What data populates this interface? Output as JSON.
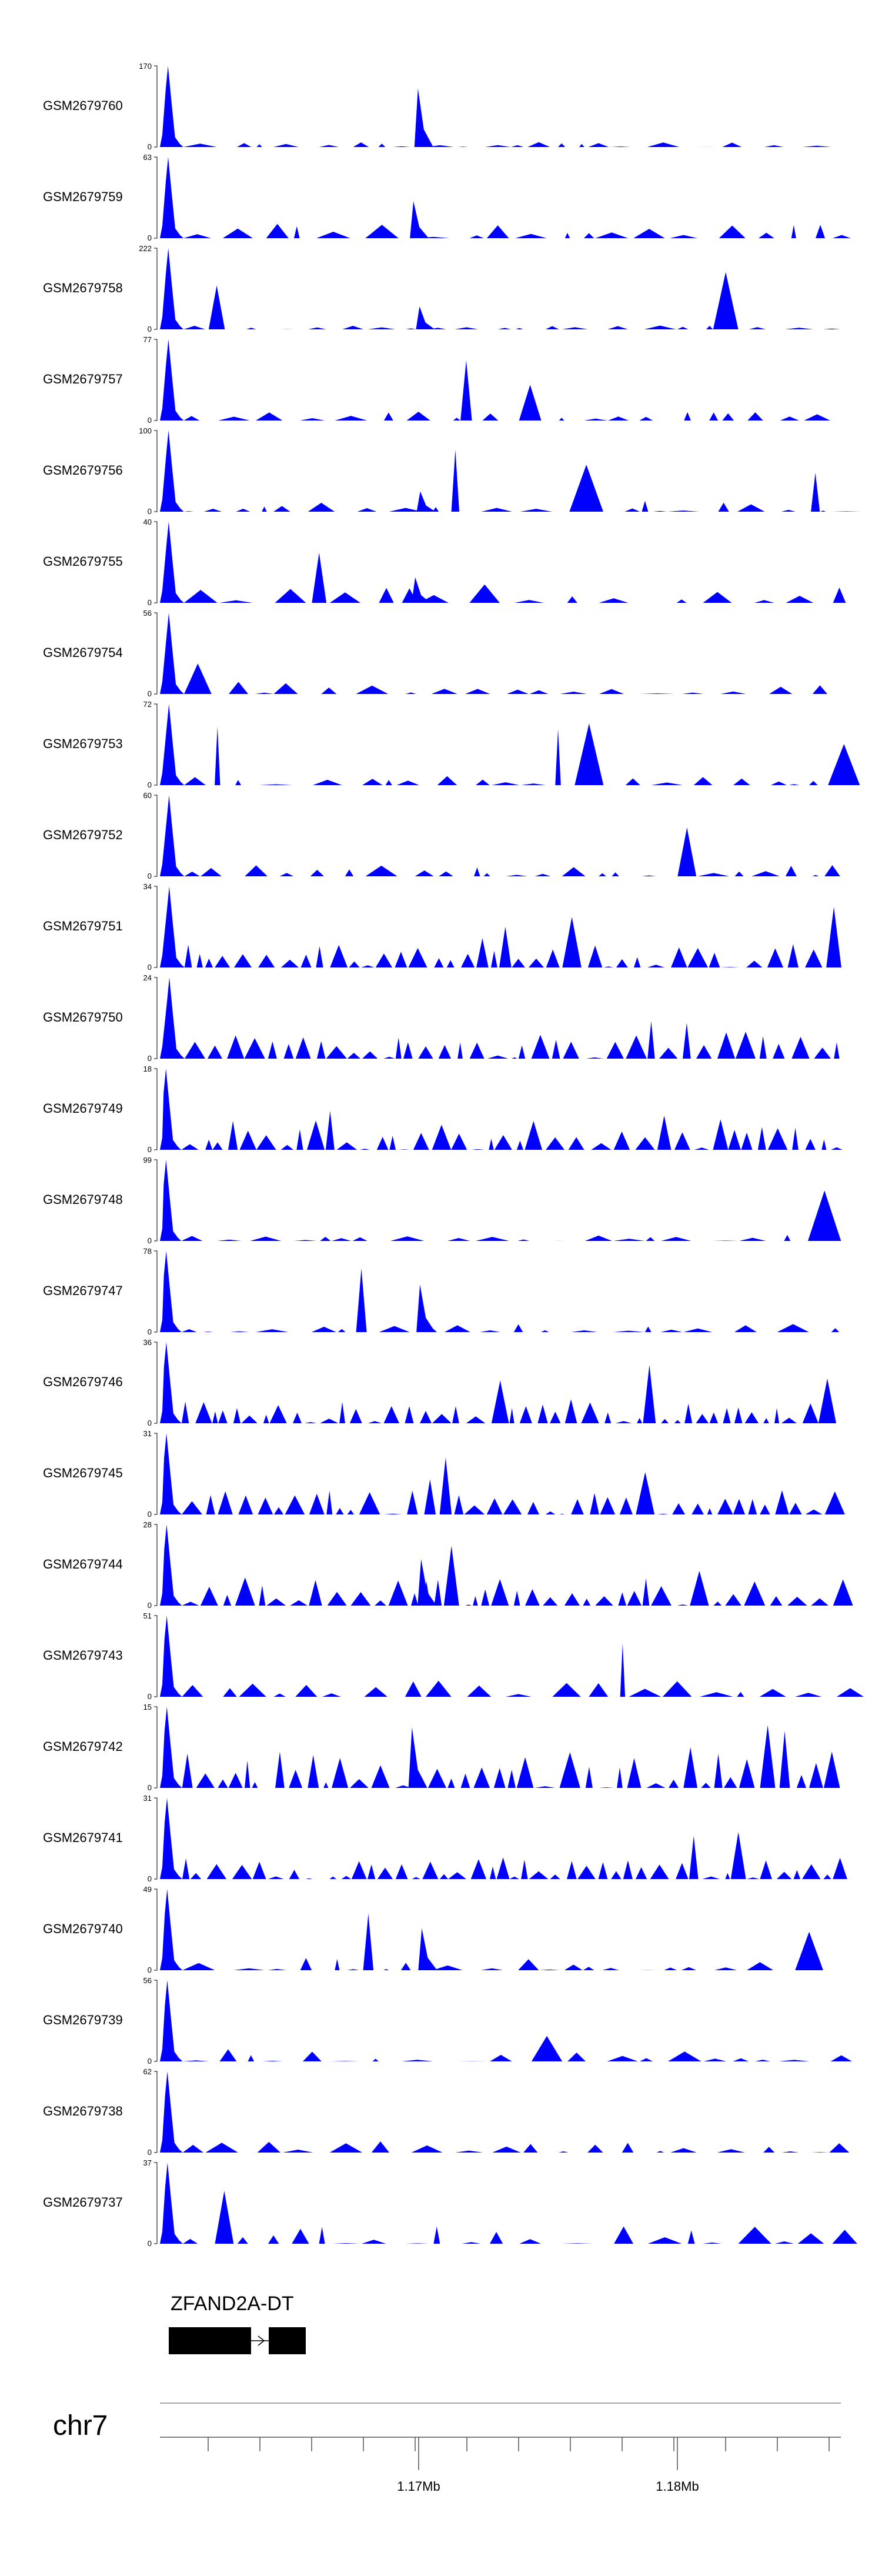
{
  "chart_data": {
    "type": "area",
    "tracks": [
      {
        "name": "GSM2679760",
        "ymax": "170",
        "ymin": "0"
      },
      {
        "name": "GSM2679759",
        "ymax": "63",
        "ymin": "0"
      },
      {
        "name": "GSM2679758",
        "ymax": "222",
        "ymin": "0"
      },
      {
        "name": "GSM2679757",
        "ymax": "77",
        "ymin": "0"
      },
      {
        "name": "GSM2679756",
        "ymax": "100",
        "ymin": "0"
      },
      {
        "name": "GSM2679755",
        "ymax": "40",
        "ymin": "0"
      },
      {
        "name": "GSM2679754",
        "ymax": "56",
        "ymin": "0"
      },
      {
        "name": "GSM2679753",
        "ymax": "72",
        "ymin": "0"
      },
      {
        "name": "GSM2679752",
        "ymax": "60",
        "ymin": "0"
      },
      {
        "name": "GSM2679751",
        "ymax": "34",
        "ymin": "0"
      },
      {
        "name": "GSM2679750",
        "ymax": "24",
        "ymin": "0"
      },
      {
        "name": "GSM2679749",
        "ymax": "18",
        "ymin": "0"
      },
      {
        "name": "GSM2679748",
        "ymax": "99",
        "ymin": "0"
      },
      {
        "name": "GSM2679747",
        "ymax": "78",
        "ymin": "0"
      },
      {
        "name": "GSM2679746",
        "ymax": "36",
        "ymin": "0"
      },
      {
        "name": "GSM2679745",
        "ymax": "31",
        "ymin": "0"
      },
      {
        "name": "GSM2679744",
        "ymax": "28",
        "ymin": "0"
      },
      {
        "name": "GSM2679743",
        "ymax": "51",
        "ymin": "0"
      },
      {
        "name": "GSM2679742",
        "ymax": "15",
        "ymin": "0"
      },
      {
        "name": "GSM2679741",
        "ymax": "31",
        "ymin": "0"
      },
      {
        "name": "GSM2679740",
        "ymax": "49",
        "ymin": "0"
      },
      {
        "name": "GSM2679739",
        "ymax": "56",
        "ymin": "0"
      },
      {
        "name": "GSM2679738",
        "ymax": "62",
        "ymin": "0"
      },
      {
        "name": "GSM2679737",
        "ymax": "37",
        "ymin": "0"
      }
    ],
    "gene": {
      "name": "ZFAND2A-DT"
    },
    "chromosome": "chr7",
    "x_ticks": [
      "1.17Mb",
      "1.18Mb"
    ],
    "fill_color": "#0000ff"
  }
}
